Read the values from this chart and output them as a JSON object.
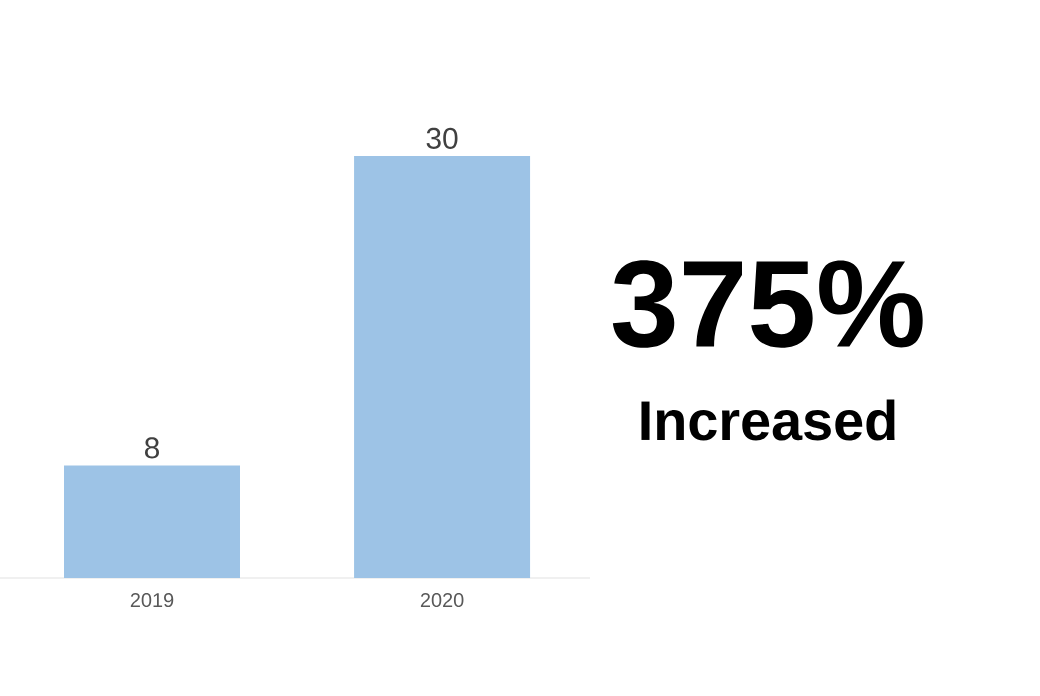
{
  "chart_data": {
    "type": "bar",
    "categories": [
      "2019",
      "2020"
    ],
    "values": [
      8,
      30
    ],
    "color": "#9dc3e6",
    "data_labels": true,
    "annotations": [
      "375%",
      "Increased"
    ]
  }
}
